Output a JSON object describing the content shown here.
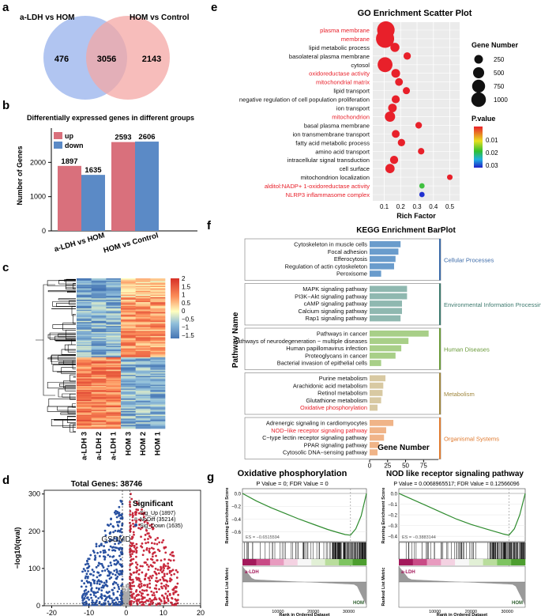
{
  "panels": {
    "a": "a",
    "b": "b",
    "c": "c",
    "d": "d",
    "e": "e",
    "f": "f",
    "g": "g"
  },
  "venn": {
    "label_left": "a-LDH vs HOM",
    "label_right": "HOM vs Control",
    "left_only": "476",
    "overlap": "3056",
    "right_only": "2143",
    "color_left": "#9db6ee",
    "color_right": "#f4a7a4"
  },
  "chart_data": [
    {
      "id": "deg_bar",
      "type": "bar",
      "title": "Differentially expressed genes in different groups",
      "ylabel": "Number of Genes",
      "ylim": [
        0,
        3000
      ],
      "yticks": [
        "0",
        "1000",
        "2000"
      ],
      "categories": [
        "a-LDH vs HOM",
        "HOM vs Control"
      ],
      "series": [
        {
          "name": "up",
          "color": "#d9707c",
          "values": [
            1897,
            2593
          ]
        },
        {
          "name": "down",
          "color": "#5b8ac6",
          "values": [
            1635,
            2606
          ]
        }
      ]
    },
    {
      "id": "heatmap",
      "type": "heatmap",
      "columns": [
        "a-LDH 3",
        "a-LDH 2",
        "a-LDH 1",
        "HOM 3",
        "HOM 2",
        "HOM 1"
      ],
      "colorbar_ticks": [
        "2",
        "1.5",
        "1",
        "0.5",
        "0",
        "−0.5",
        "−1",
        "−1.5"
      ],
      "low_color": "#4575b4",
      "mid_color": "#ffffbf",
      "high_color": "#d73027"
    },
    {
      "id": "volcano",
      "type": "scatter",
      "title": "Total Genes: 38746",
      "ylabel": "−log10(qval)",
      "xlim": [
        -22,
        20
      ],
      "ylim": [
        0,
        310
      ],
      "xticks": [
        "-20",
        "-10",
        "0",
        "10",
        "20"
      ],
      "yticks": [
        "0",
        "100",
        "200",
        "300"
      ],
      "legend_title": "Significant",
      "series": [
        {
          "name": "Sig_Up (1897)",
          "color": "#c8283c"
        },
        {
          "name": "NoDiff (35214)",
          "color": "#aaaaaa"
        },
        {
          "name": "Sig_Down (1635)",
          "color": "#2850a0"
        }
      ],
      "annotation": "GSDMD"
    },
    {
      "id": "go_scatter",
      "type": "scatter",
      "title": "GO Enrichment Scatter Plot",
      "xlabel": "Rich Factor",
      "xlim": [
        0.03,
        0.56
      ],
      "xticks": [
        "0.1",
        "0.2",
        "0.3",
        "0.4",
        "0.5"
      ],
      "size_legend_title": "Gene Number",
      "size_legend": [
        "250",
        "500",
        "750",
        "1000"
      ],
      "color_legend_title": "P.value",
      "color_legend_ticks": [
        "0.01",
        "0.02",
        "0.03"
      ],
      "terms": [
        {
          "term": "plasma membrane",
          "rich": 0.11,
          "genes": 1050,
          "p": 0.0,
          "highlight": true
        },
        {
          "term": "membrane",
          "rich": 0.105,
          "genes": 1150,
          "p": 0.0,
          "highlight": true
        },
        {
          "term": "lipid metabolic process",
          "rich": 0.165,
          "genes": 180,
          "p": 0.001,
          "highlight": false
        },
        {
          "term": "basolateral plasma membrane",
          "rich": 0.24,
          "genes": 90,
          "p": 0.002,
          "highlight": false
        },
        {
          "term": "cytosol",
          "rich": 0.105,
          "genes": 700,
          "p": 0.001,
          "highlight": false
        },
        {
          "term": "oxidoreductase activity",
          "rich": 0.17,
          "genes": 160,
          "p": 0.002,
          "highlight": true
        },
        {
          "term": "mitochondrial matrix",
          "rich": 0.19,
          "genes": 110,
          "p": 0.002,
          "highlight": true
        },
        {
          "term": "lipid transport",
          "rich": 0.235,
          "genes": 80,
          "p": 0.002,
          "highlight": false
        },
        {
          "term": "negative regulation of cell population proliferation",
          "rich": 0.17,
          "genes": 120,
          "p": 0.003,
          "highlight": false
        },
        {
          "term": "ion transport",
          "rich": 0.15,
          "genes": 150,
          "p": 0.003,
          "highlight": false
        },
        {
          "term": "mitochondrion",
          "rich": 0.135,
          "genes": 260,
          "p": 0.003,
          "highlight": true
        },
        {
          "term": "basal plasma membrane",
          "rich": 0.31,
          "genes": 60,
          "p": 0.004,
          "highlight": false
        },
        {
          "term": "ion transmembrane transport",
          "rich": 0.17,
          "genes": 110,
          "p": 0.004,
          "highlight": false
        },
        {
          "term": "fatty acid metabolic process",
          "rich": 0.205,
          "genes": 90,
          "p": 0.004,
          "highlight": false
        },
        {
          "term": "amino acid transport",
          "rich": 0.325,
          "genes": 55,
          "p": 0.005,
          "highlight": false
        },
        {
          "term": "intracellular signal transduction",
          "rich": 0.16,
          "genes": 130,
          "p": 0.005,
          "highlight": false
        },
        {
          "term": "cell surface",
          "rich": 0.135,
          "genes": 190,
          "p": 0.005,
          "highlight": false
        },
        {
          "term": "mitochondrion localization",
          "rich": 0.5,
          "genes": 30,
          "p": 0.006,
          "highlight": false
        },
        {
          "term": "alditol:NADP+ 1-oxidoreductase activity",
          "rich": 0.33,
          "genes": 25,
          "p": 0.016,
          "highlight": true
        },
        {
          "term": "NLRP3 inflammasome complex",
          "rich": 0.33,
          "genes": 25,
          "p": 0.03,
          "highlight": true
        }
      ]
    },
    {
      "id": "kegg_bar",
      "type": "bar",
      "title": "KEGG Enrichment BarPlot",
      "xlabel": "Gene Number",
      "ylabel": "Pathway Name",
      "xlim": [
        0,
        90
      ],
      "xticks": [
        "0",
        "25",
        "50",
        "75"
      ],
      "groups": [
        {
          "name": "Cellular Processes",
          "color": "#6a9ccc",
          "label_color": "#3b6aa8",
          "items": [
            {
              "label": "Cytoskeleton in muscle cells",
              "value": 43,
              "highlight": false
            },
            {
              "label": "Focal adhesion",
              "value": 40,
              "highlight": false
            },
            {
              "label": "Efferocytosis",
              "value": 36,
              "highlight": false
            },
            {
              "label": "Regulation of actin cytoskeleton",
              "value": 34,
              "highlight": false
            },
            {
              "label": "Peroxisome",
              "value": 16,
              "highlight": false
            }
          ]
        },
        {
          "name": "Environmental Information Processing",
          "color": "#8fb8b0",
          "label_color": "#3d7a6e",
          "items": [
            {
              "label": "MAPK signaling pathway",
              "value": 52,
              "highlight": false
            },
            {
              "label": "PI3K−Akt signaling pathway",
              "value": 52,
              "highlight": false
            },
            {
              "label": "cAMP signaling pathway",
              "value": 45,
              "highlight": false
            },
            {
              "label": "Calcium signaling pathway",
              "value": 45,
              "highlight": false
            },
            {
              "label": "Rap1 signaling pathway",
              "value": 43,
              "highlight": false
            }
          ]
        },
        {
          "name": "Human Diseases",
          "color": "#a8cf88",
          "label_color": "#6a9a3a",
          "items": [
            {
              "label": "Pathways in cancer",
              "value": 82,
              "highlight": false
            },
            {
              "label": "Pathways of neurodegeneration − multiple diseases",
              "value": 54,
              "highlight": false
            },
            {
              "label": "Human papillomavirus infection",
              "value": 44,
              "highlight": false
            },
            {
              "label": "Proteoglycans in cancer",
              "value": 36,
              "highlight": false
            },
            {
              "label": "Bacterial invasion of epithelial cells",
              "value": 16,
              "highlight": false
            }
          ]
        },
        {
          "name": "Metabolism",
          "color": "#d8c9a2",
          "label_color": "#a0873e",
          "items": [
            {
              "label": "Purine metabolism",
              "value": 22,
              "highlight": false
            },
            {
              "label": "Arachidonic acid metabolism",
              "value": 19,
              "highlight": false
            },
            {
              "label": "Retinol metabolism",
              "value": 18,
              "highlight": false
            },
            {
              "label": "Glutathione metabolism",
              "value": 16,
              "highlight": false
            },
            {
              "label": "Oxidative phosphorylation",
              "value": 11,
              "highlight": true
            }
          ]
        },
        {
          "name": "Organismal Systems",
          "color": "#f0b488",
          "label_color": "#e07b30",
          "items": [
            {
              "label": "Adrenergic signaling in cardiomyocytes",
              "value": 33,
              "highlight": false
            },
            {
              "label": "NOD−like receptor signaling pathway",
              "value": 23,
              "highlight": true
            },
            {
              "label": "C−type lectin receptor signaling pathway",
              "value": 20,
              "highlight": false
            },
            {
              "label": "PPAR signaling pathway",
              "value": 13,
              "highlight": false
            },
            {
              "label": "Cytosolic DNA−sensing pathway",
              "value": 11,
              "highlight": false
            }
          ]
        }
      ]
    },
    {
      "id": "gsea_oxphos",
      "type": "line",
      "title": "Oxidative phosphorylation",
      "subtitle": "P Value = 0; FDR Value = 0",
      "es_label": "ES = −0.6515594",
      "ylabel_top": "Running Enrichment Score",
      "ylabel_bottom": "Ranked List Metric",
      "xlabel": "Rank in Ordered Dataset",
      "yticks": [
        "0.0",
        "−0.2",
        "−0.4",
        "−0.6"
      ],
      "xticks": [
        "10000",
        "20000",
        "30000"
      ],
      "left_group": "a-LDH",
      "right_group": "HOM",
      "x": [
        0,
        4000,
        8000,
        12000,
        16000,
        20000,
        24000,
        27000,
        29000,
        30500,
        32000,
        33500,
        35000
      ],
      "y": [
        0.0,
        -0.12,
        -0.22,
        -0.31,
        -0.4,
        -0.48,
        -0.56,
        -0.61,
        -0.64,
        -0.65,
        -0.55,
        -0.35,
        0.0
      ]
    },
    {
      "id": "gsea_nod",
      "type": "line",
      "title": "NOD like receptor signaling pathway",
      "subtitle": "P Value = 0.0068965517; FDR Value = 0.12566096",
      "es_label": "ES = −0.3883144",
      "ylabel_top": "Running Enrichment Score",
      "ylabel_bottom": "Ranked List Metric",
      "xlabel": "Rank in Ordered Dataset",
      "yticks": [
        "0.0",
        "−0.1",
        "−0.2",
        "−0.3",
        "−0.4"
      ],
      "xticks": [
        "10000",
        "20000",
        "30000"
      ],
      "left_group": "a-LDH",
      "right_group": "HOM",
      "x": [
        0,
        4000,
        8000,
        12000,
        16000,
        20000,
        24000,
        27000,
        29000,
        30500,
        32000,
        33500,
        35000
      ],
      "y": [
        0.0,
        -0.06,
        -0.12,
        -0.18,
        -0.24,
        -0.29,
        -0.33,
        -0.36,
        -0.38,
        -0.39,
        -0.33,
        -0.2,
        0.0
      ]
    }
  ]
}
